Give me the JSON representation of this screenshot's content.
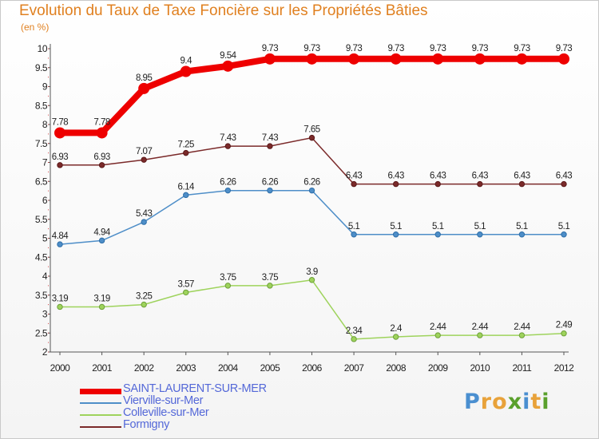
{
  "header": {
    "title": "Evolution du Taux de Taxe Foncière sur les Propriétés Bâties",
    "unit": "(en %)"
  },
  "chart_data": {
    "type": "line",
    "title": "Evolution du Taux de Taxe Foncière sur les Propriétés Bâties",
    "ylabel": "(en %)",
    "xlabel": "",
    "ylim": [
      2,
      10
    ],
    "yticks": [
      2,
      2.5,
      3,
      3.5,
      4,
      4.5,
      5,
      5.5,
      6,
      6.5,
      7,
      7.5,
      8,
      8.5,
      9,
      9.5,
      10
    ],
    "x": [
      "2000",
      "2001",
      "2002",
      "2003",
      "2004",
      "2005",
      "2006",
      "2007",
      "2008",
      "2009",
      "2010",
      "2011",
      "2012"
    ],
    "grid": false,
    "legend_position": "bottom-left",
    "series": [
      {
        "name": "SAINT-LAURENT-SUR-MER",
        "color": "#ee0000",
        "values": [
          7.78,
          7.78,
          8.95,
          9.4,
          9.54,
          9.73,
          9.73,
          9.73,
          9.73,
          9.73,
          9.73,
          9.73,
          9.73
        ],
        "labels": [
          "7.78",
          "7.78",
          "8.95",
          "9.4",
          "9.54",
          "9.73",
          "9.73",
          "9.73",
          "9.73",
          "9.73",
          "9.73",
          "9.73",
          "9.73"
        ]
      },
      {
        "name": "Vierville-sur-Mer",
        "color": "#4e8ec8",
        "values": [
          4.84,
          4.94,
          5.43,
          6.14,
          6.26,
          6.26,
          6.26,
          5.1,
          5.1,
          5.1,
          5.1,
          5.1,
          5.1
        ],
        "labels": [
          "4.84",
          "4.94",
          "5.43",
          "6.14",
          "6.26",
          "6.26",
          "6.26",
          "5.1",
          "5.1",
          "5.1",
          "5.1",
          "5.1",
          "5.1"
        ]
      },
      {
        "name": "Colleville-sur-Mer",
        "color": "#9ed35c",
        "values": [
          3.19,
          3.19,
          3.25,
          3.57,
          3.75,
          3.75,
          3.9,
          2.34,
          2.4,
          2.44,
          2.44,
          2.44,
          2.49
        ],
        "labels": [
          "3.19",
          "3.19",
          "3.25",
          "3.57",
          "3.75",
          "3.75",
          "3.9",
          "2.34",
          "2.4",
          "2.44",
          "2.44",
          "2.44",
          "2.49"
        ]
      },
      {
        "name": "Formigny",
        "color": "#7b2a2a",
        "values": [
          6.93,
          6.93,
          7.07,
          7.25,
          7.43,
          7.43,
          7.65,
          6.43,
          6.43,
          6.43,
          6.43,
          6.43,
          6.43
        ],
        "labels": [
          "6.93",
          "6.93",
          "7.07",
          "7.25",
          "7.43",
          "7.43",
          "7.65",
          "6.43",
          "6.43",
          "6.43",
          "6.43",
          "6.43",
          "6.43"
        ]
      }
    ]
  },
  "legend": {
    "items": [
      "SAINT-LAURENT-SUR-MER",
      "Vierville-sur-Mer",
      "Colleville-sur-Mer",
      "Formigny"
    ]
  },
  "logo": {
    "text": "Proxiti",
    "letter_colors": [
      "#4a8fd0",
      "#e8a23a",
      "#e8a23a",
      "#5aa02c",
      "#4a8fd0",
      "#e8a23a",
      "#5aa02c"
    ]
  }
}
